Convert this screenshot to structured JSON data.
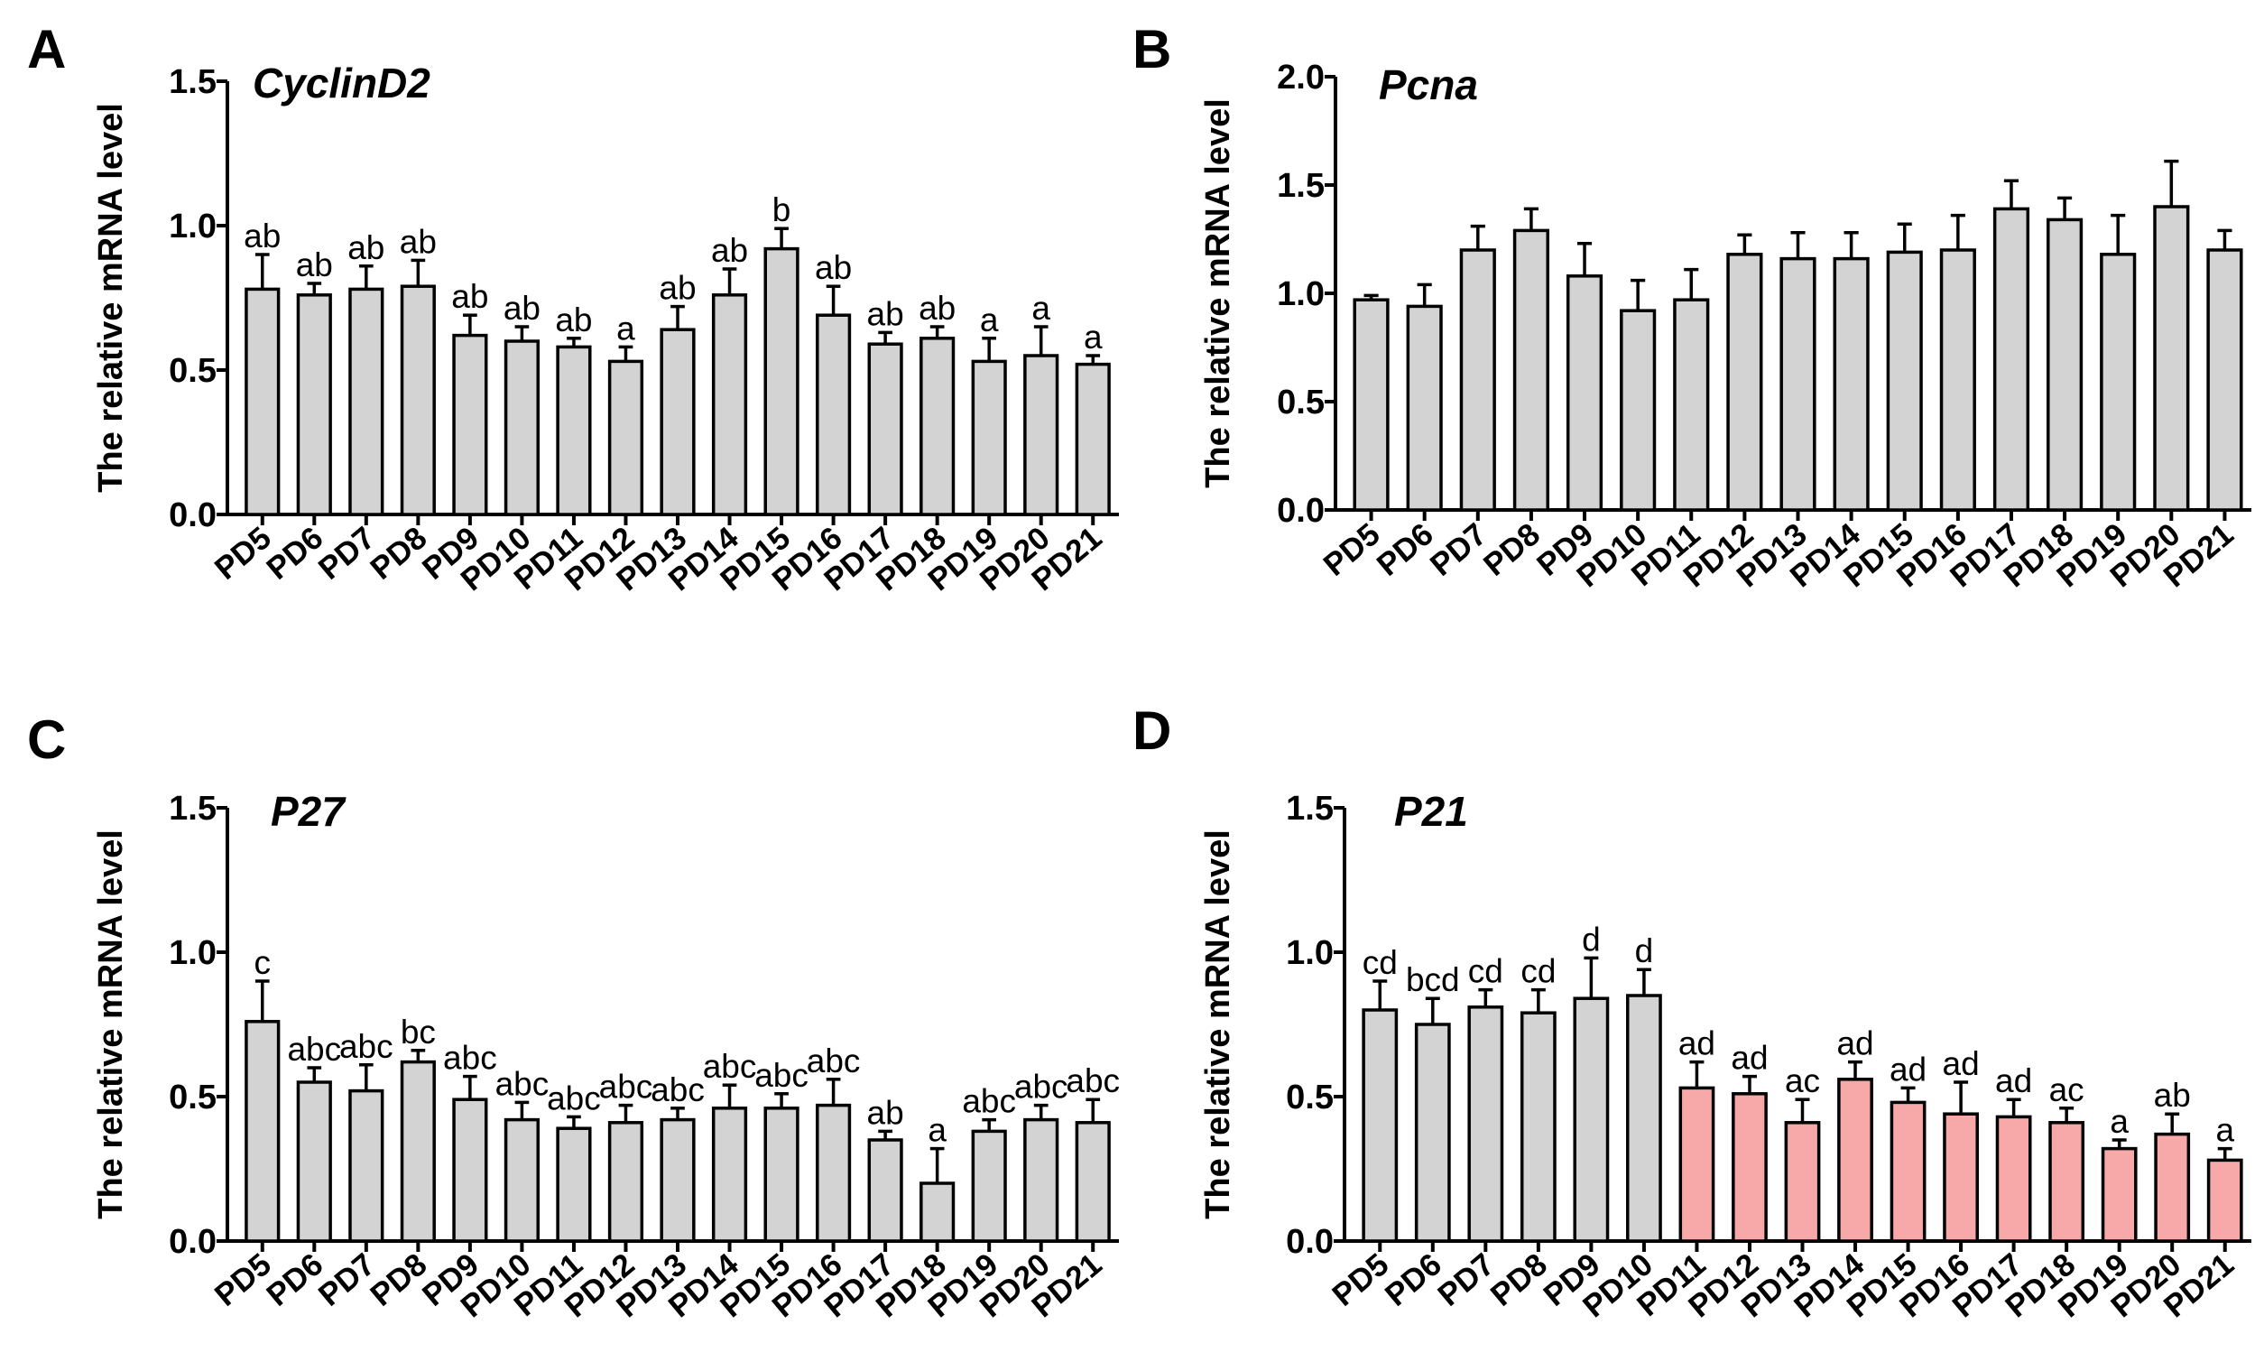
{
  "chart_data": [
    {
      "id": "A",
      "type": "bar",
      "panel_label": "A",
      "title": "CyclinD2",
      "ylabel": "The relative mRNA level",
      "xlabel": "",
      "ylim": [
        0,
        1.5
      ],
      "yticks": [
        "0.0",
        "0.5",
        "1.0",
        "1.5"
      ],
      "categories": [
        "PD5",
        "PD6",
        "PD7",
        "PD8",
        "PD9",
        "PD10",
        "PD11",
        "PD12",
        "PD13",
        "PD14",
        "PD15",
        "PD16",
        "PD17",
        "PD18",
        "PD19",
        "PD20",
        "PD21"
      ],
      "series": [
        {
          "name": "CyclinD2",
          "values": [
            0.78,
            0.76,
            0.78,
            0.79,
            0.62,
            0.6,
            0.58,
            0.53,
            0.64,
            0.76,
            0.92,
            0.69,
            0.59,
            0.61,
            0.53,
            0.55,
            0.52
          ],
          "errors": [
            0.12,
            0.04,
            0.08,
            0.09,
            0.07,
            0.05,
            0.03,
            0.05,
            0.08,
            0.09,
            0.07,
            0.1,
            0.04,
            0.04,
            0.08,
            0.1,
            0.03
          ]
        }
      ],
      "bar_colors": [
        "#d3d3d3",
        "#d3d3d3",
        "#d3d3d3",
        "#d3d3d3",
        "#d3d3d3",
        "#d3d3d3",
        "#d3d3d3",
        "#d3d3d3",
        "#d3d3d3",
        "#d3d3d3",
        "#d3d3d3",
        "#d3d3d3",
        "#d3d3d3",
        "#d3d3d3",
        "#d3d3d3",
        "#d3d3d3",
        "#d3d3d3"
      ],
      "annotations": [
        "ab",
        "ab",
        "ab",
        "ab",
        "ab",
        "ab",
        "ab",
        "a",
        "ab",
        "ab",
        "b",
        "ab",
        "ab",
        "ab",
        "a",
        "a",
        "a"
      ]
    },
    {
      "id": "B",
      "type": "bar",
      "panel_label": "B",
      "title": "Pcna",
      "ylabel": "The relative mRNA level",
      "xlabel": "",
      "ylim": [
        0,
        2.0
      ],
      "yticks": [
        "0.0",
        "0.5",
        "1.0",
        "1.5",
        "2.0"
      ],
      "categories": [
        "PD5",
        "PD6",
        "PD7",
        "PD8",
        "PD9",
        "PD10",
        "PD11",
        "PD12",
        "PD13",
        "PD14",
        "PD15",
        "PD16",
        "PD17",
        "PD18",
        "PD19",
        "PD20",
        "PD21"
      ],
      "series": [
        {
          "name": "Pcna",
          "values": [
            0.97,
            0.94,
            1.2,
            1.29,
            1.08,
            0.92,
            0.97,
            1.18,
            1.16,
            1.16,
            1.19,
            1.2,
            1.39,
            1.34,
            1.18,
            1.4,
            1.2
          ],
          "errors": [
            0.02,
            0.1,
            0.11,
            0.1,
            0.15,
            0.14,
            0.14,
            0.09,
            0.12,
            0.12,
            0.13,
            0.16,
            0.13,
            0.1,
            0.18,
            0.21,
            0.09
          ]
        }
      ],
      "bar_colors": [
        "#d3d3d3",
        "#d3d3d3",
        "#d3d3d3",
        "#d3d3d3",
        "#d3d3d3",
        "#d3d3d3",
        "#d3d3d3",
        "#d3d3d3",
        "#d3d3d3",
        "#d3d3d3",
        "#d3d3d3",
        "#d3d3d3",
        "#d3d3d3",
        "#d3d3d3",
        "#d3d3d3",
        "#d3d3d3",
        "#d3d3d3"
      ],
      "annotations": []
    },
    {
      "id": "C",
      "type": "bar",
      "panel_label": "C",
      "title": "P27",
      "ylabel": "The relative mRNA level",
      "xlabel": "",
      "ylim": [
        0,
        1.5
      ],
      "yticks": [
        "0.0",
        "0.5",
        "1.0",
        "1.5"
      ],
      "categories": [
        "PD5",
        "PD6",
        "PD7",
        "PD8",
        "PD9",
        "PD10",
        "PD11",
        "PD12",
        "PD13",
        "PD14",
        "PD15",
        "PD16",
        "PD17",
        "PD18",
        "PD19",
        "PD20",
        "PD21"
      ],
      "series": [
        {
          "name": "P27",
          "values": [
            0.76,
            0.55,
            0.52,
            0.62,
            0.49,
            0.42,
            0.39,
            0.41,
            0.42,
            0.46,
            0.46,
            0.47,
            0.35,
            0.2,
            0.38,
            0.42,
            0.41
          ],
          "errors": [
            0.14,
            0.05,
            0.09,
            0.04,
            0.08,
            0.06,
            0.04,
            0.06,
            0.04,
            0.08,
            0.05,
            0.09,
            0.03,
            0.12,
            0.04,
            0.05,
            0.08
          ]
        }
      ],
      "bar_colors": [
        "#d3d3d3",
        "#d3d3d3",
        "#d3d3d3",
        "#d3d3d3",
        "#d3d3d3",
        "#d3d3d3",
        "#d3d3d3",
        "#d3d3d3",
        "#d3d3d3",
        "#d3d3d3",
        "#d3d3d3",
        "#d3d3d3",
        "#d3d3d3",
        "#d3d3d3",
        "#d3d3d3",
        "#d3d3d3",
        "#d3d3d3"
      ],
      "annotations": [
        "c",
        "abc",
        "abc",
        "bc",
        "abc",
        "abc",
        "abc",
        "abc",
        "abc",
        "abc",
        "abc",
        "abc",
        "ab",
        "a",
        "abc",
        "abc",
        "abc"
      ]
    },
    {
      "id": "D",
      "type": "bar",
      "panel_label": "D",
      "title": "P21",
      "ylabel": "The relative mRNA level",
      "xlabel": "",
      "ylim": [
        0,
        1.5
      ],
      "yticks": [
        "0.0",
        "0.5",
        "1.0",
        "1.5"
      ],
      "categories": [
        "PD5",
        "PD6",
        "PD7",
        "PD8",
        "PD9",
        "PD10",
        "PD11",
        "PD12",
        "PD13",
        "PD14",
        "PD15",
        "PD16",
        "PD17",
        "PD18",
        "PD19",
        "PD20",
        "PD21"
      ],
      "series": [
        {
          "name": "P21",
          "values": [
            0.8,
            0.75,
            0.81,
            0.79,
            0.84,
            0.85,
            0.53,
            0.51,
            0.41,
            0.56,
            0.48,
            0.44,
            0.43,
            0.41,
            0.32,
            0.37,
            0.28
          ],
          "errors": [
            0.1,
            0.09,
            0.06,
            0.08,
            0.14,
            0.09,
            0.09,
            0.06,
            0.08,
            0.06,
            0.05,
            0.11,
            0.06,
            0.05,
            0.03,
            0.07,
            0.04
          ]
        }
      ],
      "bar_colors": [
        "#d3d3d3",
        "#d3d3d3",
        "#d3d3d3",
        "#d3d3d3",
        "#d3d3d3",
        "#d3d3d3",
        "#f7a8a8",
        "#f7a8a8",
        "#f7a8a8",
        "#f7a8a8",
        "#f7a8a8",
        "#f7a8a8",
        "#f7a8a8",
        "#f7a8a8",
        "#f7a8a8",
        "#f7a8a8",
        "#f7a8a8"
      ],
      "annotations": [
        "cd",
        "bcd",
        "cd",
        "cd",
        "d",
        "d",
        "ad",
        "ad",
        "ac",
        "ad",
        "ad",
        "ad",
        "ad",
        "ac",
        "a",
        "ab",
        "a"
      ]
    }
  ]
}
